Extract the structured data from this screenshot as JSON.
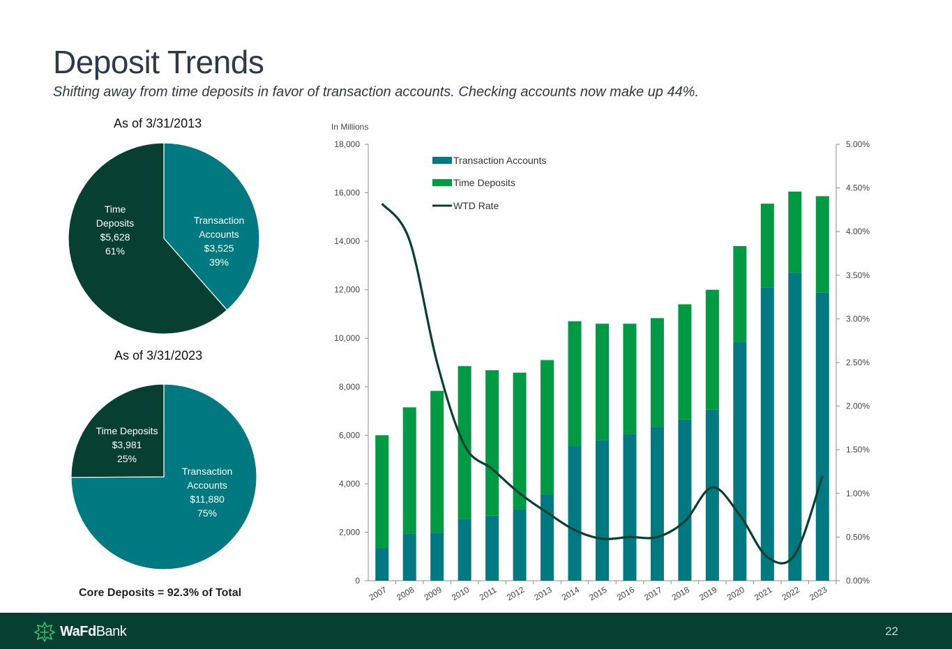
{
  "header": {
    "title": "Deposit Trends",
    "subtitle": "Shifting away from time deposits in favor of transaction accounts.  Checking accounts now make up 44%."
  },
  "footer": {
    "logo_bold": "WaFd",
    "logo_regular": "Bank",
    "page_number": "22"
  },
  "core_note": "Core Deposits = 92.3% of Total",
  "colors": {
    "transaction": "#007a80",
    "time_deposits": "#009a44",
    "time_dark": "#073f33",
    "wtd_rate": "#073f33",
    "footer": "#073f33"
  },
  "chart_data": [
    {
      "type": "pie",
      "title": "As of 3/31/2013",
      "slices": [
        {
          "name_lines": [
            "Transaction",
            "Accounts"
          ],
          "amount": "$3,525",
          "value": 3525,
          "pct": "39%"
        },
        {
          "name_lines": [
            "Time",
            "Deposits"
          ],
          "amount": "$5,628",
          "value": 5628,
          "pct": "61%"
        }
      ]
    },
    {
      "type": "pie",
      "title": "As of 3/31/2023",
      "slices": [
        {
          "name_lines": [
            "Transaction",
            "Accounts"
          ],
          "amount": "$11,880",
          "value": 11880,
          "pct": "75%"
        },
        {
          "name_lines": [
            "Time Deposits"
          ],
          "amount": "$3,981",
          "value": 3981,
          "pct": "25%"
        }
      ]
    },
    {
      "type": "bar",
      "stacked": true,
      "unit_label": "In Millions",
      "categories": [
        "2007",
        "2008",
        "2009",
        "2010",
        "2011",
        "2012",
        "2013",
        "2014",
        "2015",
        "2016",
        "2017",
        "2018",
        "2019",
        "2020",
        "2021",
        "2022",
        "2023"
      ],
      "series": [
        {
          "name": "Transaction Accounts",
          "values": [
            1350,
            1950,
            1980,
            2550,
            2680,
            2950,
            3550,
            5550,
            5800,
            6050,
            6350,
            6650,
            7050,
            9850,
            12100,
            12700,
            11880
          ]
        },
        {
          "name": "Time Deposits",
          "values": [
            4650,
            5200,
            5850,
            6300,
            6000,
            5630,
            5550,
            5150,
            4800,
            4550,
            4480,
            4750,
            4950,
            3950,
            3450,
            3350,
            3981
          ]
        }
      ],
      "line_series": {
        "name": "WTD Rate",
        "axis": "right",
        "values": [
          4.32,
          3.9,
          2.5,
          1.55,
          1.28,
          1.0,
          0.78,
          0.58,
          0.48,
          0.5,
          0.5,
          0.68,
          1.07,
          0.75,
          0.27,
          0.3,
          1.2
        ]
      },
      "ylim": [
        0,
        18000
      ],
      "y_ticks": [
        0,
        2000,
        4000,
        6000,
        8000,
        10000,
        12000,
        14000,
        16000,
        18000
      ],
      "y_tick_labels": [
        "0",
        "2,000",
        "4,000",
        "6,000",
        "8,000",
        "10,000",
        "12,000",
        "14,000",
        "16,000",
        "18,000"
      ],
      "y2lim": [
        0,
        5
      ],
      "y2_ticks": [
        0,
        0.5,
        1,
        1.5,
        2,
        2.5,
        3,
        3.5,
        4,
        4.5,
        5
      ],
      "y2_tick_labels": [
        "0.00%",
        "0.50%",
        "1.00%",
        "1.50%",
        "2.00%",
        "2.50%",
        "3.00%",
        "3.50%",
        "4.00%",
        "4.50%",
        "5.00%"
      ],
      "legend": [
        "Transaction Accounts",
        "Time Deposits",
        "WTD Rate"
      ],
      "legend_position": "top-left"
    }
  ]
}
